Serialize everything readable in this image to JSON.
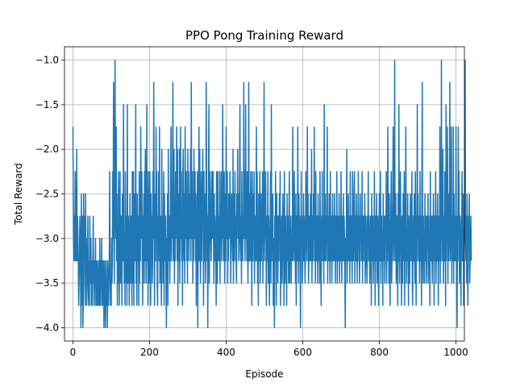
{
  "chart_data": {
    "type": "line",
    "title": "PPO Pong Training Reward",
    "xlabel": "Episode",
    "ylabel": "Total Reward",
    "xlim": [
      -22,
      1022
    ],
    "ylim": [
      -4.15,
      -0.85
    ],
    "x_ticks": [
      0,
      200,
      400,
      600,
      800,
      1000
    ],
    "x_tick_labels": [
      "0",
      "200",
      "400",
      "600",
      "800",
      "1000"
    ],
    "y_ticks": [
      -4.0,
      -3.5,
      -3.0,
      -2.5,
      -2.0,
      -1.5,
      -1.0
    ],
    "y_tick_labels": [
      "−4.0",
      "−3.5",
      "−3.0",
      "−2.5",
      "−2.0",
      "−1.5",
      "−1.0"
    ],
    "grid": true,
    "series_color": "#1f77b4",
    "x_step": 1,
    "series": [
      {
        "values": [
          -1.75,
          -2.5,
          -3.0,
          -3.25,
          -2.75,
          -3.25,
          -2.25,
          -3.0,
          -3.25,
          -2.75,
          -2.0,
          -3.25,
          -2.75,
          -3.0,
          -3.25,
          -3.75,
          -3.5,
          -3.25,
          -2.75,
          -3.0,
          -3.5,
          -4.0,
          -2.5,
          -3.75,
          -3.0,
          -2.75,
          -4.0,
          -3.75,
          -2.5,
          -3.25,
          -2.75,
          -3.5,
          -3.75,
          -2.5,
          -3.25,
          -3.0,
          -3.75,
          -3.5,
          -3.25,
          -2.75,
          -3.5,
          -3.75,
          -3.25,
          -3.75,
          -2.75,
          -3.25,
          -3.5,
          -3.0,
          -3.75,
          -3.25,
          -3.5,
          -3.75,
          -3.25,
          -2.75,
          -3.5,
          -3.25,
          -3.75,
          -3.25,
          -3.5,
          -3.0,
          -3.75,
          -3.25,
          -3.5,
          -3.75,
          -3.25,
          -3.5,
          -3.75,
          -3.5,
          -3.25,
          -3.75,
          -3.0,
          -3.5,
          -3.75,
          -3.25,
          -3.5,
          -3.0,
          -3.75,
          -3.25,
          -3.5,
          -3.75,
          -3.25,
          -4.0,
          -3.5,
          -3.25,
          -3.75,
          -4.0,
          -3.5,
          -3.25,
          -3.75,
          -3.5,
          -4.0,
          -3.25,
          -3.5,
          -3.75,
          -3.5,
          -3.25,
          -2.25,
          -3.25,
          -3.75,
          -3.5,
          -3.75,
          -3.0,
          -3.5,
          -3.25,
          -2.25,
          -3.0,
          -1.25,
          -2.75,
          -3.5,
          -2.25,
          -1.0,
          -2.5,
          -3.0,
          -1.75,
          -3.25,
          -2.5,
          -3.75,
          -3.0,
          -3.5,
          -2.25,
          -3.25,
          -3.75,
          -2.75,
          -2.25,
          -3.5,
          -3.0,
          -2.75,
          -3.25,
          -3.75,
          -2.5,
          -3.0,
          -3.25,
          -1.5,
          -2.75,
          -3.5,
          -3.0,
          -3.75,
          -2.25,
          -3.25,
          -3.5,
          -2.75,
          -3.75,
          -1.5,
          -3.25,
          -3.5,
          -2.75,
          -3.0,
          -3.75,
          -3.25,
          -2.5,
          -3.5,
          -3.0,
          -2.75,
          -3.25,
          -3.75,
          -2.25,
          -3.0,
          -3.5,
          -2.25,
          -3.75,
          -3.0,
          -2.5,
          -3.25,
          -2.75,
          -1.5,
          -3.5,
          -3.0,
          -3.75,
          -2.5,
          -3.25,
          -2.75,
          -3.0,
          -3.75,
          -2.25,
          -3.5,
          -2.75,
          -3.25,
          -1.75,
          -2.5,
          -3.0,
          -2.25,
          -3.25,
          -3.75,
          -2.75,
          -3.0,
          -2.5,
          -3.5,
          -2.25,
          -3.25,
          -2.0,
          -2.75,
          -3.5,
          -3.0,
          -1.5,
          -3.25,
          -2.75,
          -3.75,
          -2.25,
          -3.0,
          -3.5,
          -2.75,
          -2.25,
          -3.25,
          -3.75,
          -2.5,
          -3.0,
          -2.75,
          -3.5,
          -3.25,
          -2.25,
          -3.0,
          -1.25,
          -2.75,
          -3.75,
          -3.0,
          -2.5,
          -3.25,
          -1.75,
          -3.0,
          -2.25,
          -3.5,
          -3.75,
          -2.75,
          -3.0,
          -2.25,
          -3.25,
          -1.75,
          -3.5,
          -3.0,
          -2.75,
          -3.25,
          -3.75,
          -2.0,
          -3.25,
          -2.75,
          -3.5,
          -3.0,
          -2.25,
          -3.75,
          -2.5,
          -3.25,
          -3.0,
          -2.75,
          -3.5,
          -4.0,
          -3.0,
          -3.25,
          -2.5,
          -3.75,
          -2.0,
          -3.0,
          -3.25,
          -2.75,
          -3.5,
          -3.0,
          -2.25,
          -1.75,
          -3.25,
          -2.75,
          -3.0,
          -2.25,
          -1.25,
          -3.25,
          -2.5,
          -2.0,
          -3.5,
          -2.75,
          -3.25,
          -2.25,
          -3.0,
          -2.5,
          -1.75,
          -3.25,
          -2.0,
          -3.75,
          -3.0,
          -2.5,
          -3.25,
          -2.0,
          -3.5,
          -2.75,
          -1.75,
          -3.0,
          -2.25,
          -3.25,
          -2.75,
          -3.75,
          -2.25,
          -2.0,
          -3.0,
          -3.25,
          -2.5,
          -3.5,
          -1.75,
          -2.75,
          -3.0,
          -2.25,
          -3.25,
          -2.75,
          -3.5,
          -2.0,
          -3.0,
          -2.25,
          -3.25,
          -2.5,
          -2.75,
          -3.0,
          -2.0,
          -3.25,
          -1.25,
          -2.75,
          -3.0,
          -2.25,
          -3.5,
          -2.5,
          -3.25,
          -2.0,
          -2.75,
          -3.0,
          -2.25,
          -3.25,
          -2.5,
          -3.75,
          -2.75,
          -3.0,
          -2.25,
          -4.0,
          -3.0,
          -2.5,
          -1.75,
          -3.25,
          -2.0,
          -2.75,
          -3.5,
          -3.0,
          -2.25,
          -3.25,
          -2.5,
          -2.75,
          -2.0,
          -3.0,
          -3.75,
          -2.25,
          -3.25,
          -2.5,
          -2.75,
          -3.5,
          -3.0,
          -1.25,
          -2.5,
          -3.25,
          -2.75,
          -4.0,
          -3.0,
          -2.25,
          -1.5,
          -3.5,
          -3.0,
          -2.25,
          -2.75,
          -3.0,
          -3.25,
          -2.5,
          -2.25,
          -3.0,
          -2.75,
          -2.25,
          -3.0,
          -3.5,
          -2.5,
          -3.25,
          -2.75,
          -3.0,
          -3.25,
          -3.75,
          -2.25,
          -3.0,
          -3.5,
          -2.25,
          -3.25,
          -2.75,
          -3.0,
          -3.25,
          -2.25,
          -3.5,
          -2.75,
          -3.0,
          -2.25,
          -3.25,
          -2.75,
          -3.0,
          -1.5,
          -2.5,
          -3.25,
          -3.0,
          -2.25,
          -3.5,
          -2.75,
          -2.5,
          -3.25,
          -1.75,
          -3.0,
          -2.75,
          -2.25,
          -3.5,
          -3.0,
          -3.25,
          -2.5,
          -2.75,
          -3.0,
          -2.25,
          -2.75,
          -3.5,
          -3.0,
          -2.5,
          -2.75,
          -3.0,
          -3.25,
          -2.0,
          -3.5,
          -2.5,
          -3.0,
          -3.25,
          -2.25,
          -3.0,
          -2.75,
          -3.25,
          -3.5,
          -2.5,
          -2.75,
          -2.0,
          -3.0,
          -2.5,
          -3.25,
          -3.0,
          -2.25,
          -1.5,
          -3.0,
          -3.25,
          -2.75,
          -3.5,
          -2.25,
          -3.0,
          -3.25,
          -2.75,
          -3.0,
          -1.25,
          -3.0,
          -2.25,
          -3.25,
          -2.75,
          -1.5,
          -3.0,
          -2.5,
          -3.25,
          -2.25,
          -3.0,
          -3.5,
          -2.75,
          -1.25,
          -3.25,
          -2.5,
          -3.0,
          -3.25,
          -2.25,
          -2.75,
          -3.0,
          -3.75,
          -2.25,
          -3.0,
          -3.25,
          -2.5,
          -3.0,
          -2.25,
          -3.5,
          -3.0,
          -2.75,
          -3.25,
          -3.0,
          -1.75,
          -3.25,
          -2.25,
          -3.5,
          -3.0,
          -3.75,
          -2.5,
          -3.0,
          -3.25,
          -2.25,
          -3.5,
          -3.0,
          -2.5,
          -3.25,
          -2.75,
          -3.0,
          -2.25,
          -3.5,
          -2.75,
          -3.0,
          -1.25,
          -3.25,
          -2.5,
          -3.0,
          -2.25,
          -3.0,
          -3.75,
          -2.75,
          -3.25,
          -3.0,
          -2.25,
          -3.5,
          -2.75,
          -3.25,
          -3.75,
          -3.0,
          -2.75,
          -2.25,
          -3.5,
          -1.5,
          -3.25,
          -2.75,
          -3.0,
          -2.5,
          -3.75,
          -3.0,
          -3.25,
          -4.0,
          -2.75,
          -3.25,
          -2.25,
          -3.0,
          -3.75,
          -2.5,
          -3.25,
          -2.75,
          -3.5,
          -3.0,
          -2.75,
          -3.25,
          -2.5,
          -3.0,
          -2.25,
          -3.75,
          -3.25,
          -3.0,
          -2.75,
          -3.5,
          -3.25,
          -2.5,
          -2.75,
          -3.0,
          -3.75,
          -2.25,
          -3.0,
          -3.5,
          -2.75,
          -3.25,
          -3.0,
          -3.75,
          -2.5,
          -3.25,
          -2.75,
          -3.0,
          -3.5,
          -2.75,
          -2.25,
          -3.5,
          -3.0,
          -3.25,
          -2.75,
          -3.5,
          -3.0,
          -3.25,
          -2.75,
          -1.75,
          -3.25,
          -3.0,
          -2.75,
          -2.25,
          -3.25,
          -3.0,
          -3.5,
          -2.5,
          -3.75,
          -3.0,
          -2.75,
          -3.25,
          -1.75,
          -3.0,
          -3.5,
          -2.5,
          -3.25,
          -2.75,
          -3.0,
          -4.0,
          -3.25,
          -2.25,
          -3.0,
          -2.75,
          -3.5,
          -3.25,
          -3.0,
          -2.5,
          -3.25,
          -2.75,
          -3.0,
          -3.5,
          -3.25,
          -2.25,
          -2.75,
          -3.0,
          -3.25,
          -1.75,
          -3.0,
          -2.5,
          -3.5,
          -3.25,
          -2.75,
          -3.0,
          -3.25,
          -2.5,
          -3.0,
          -3.25,
          -2.0,
          -3.5,
          -3.0,
          -2.75,
          -3.25,
          -2.5,
          -3.0,
          -1.75,
          -3.25,
          -2.75,
          -3.5,
          -2.25,
          -3.0,
          -3.25,
          -2.75,
          -3.0,
          -3.5,
          -2.5,
          -3.0,
          -3.25,
          -2.75,
          -3.5,
          -2.25,
          -3.0,
          -3.25,
          -3.75,
          -2.75,
          -3.0,
          -2.25,
          -3.25,
          -3.0,
          -2.75,
          -3.5,
          -1.5,
          -3.0,
          -3.25,
          -2.5,
          -3.0,
          -3.25,
          -2.75,
          -3.0,
          -1.75,
          -3.5,
          -2.75,
          -3.0,
          -3.25,
          -2.5,
          -3.0,
          -3.5,
          -2.25,
          -3.0,
          -3.25,
          -2.75,
          -3.5,
          -3.0,
          -2.5,
          -3.25,
          -3.0,
          -2.75,
          -3.25,
          -2.5,
          -3.0,
          -3.5,
          -2.75,
          -3.0,
          -3.25,
          -2.25,
          -3.5,
          -3.0,
          -2.75,
          -3.25,
          -3.0,
          -2.5,
          -3.5,
          -3.0,
          -2.75,
          -3.25,
          -2.25,
          -3.0,
          -3.5,
          -2.75,
          -3.25,
          -3.0,
          -2.5,
          -3.25,
          -2.75,
          -3.0,
          -3.5,
          -4.0,
          -3.0,
          -3.25,
          -2.75,
          -2.0,
          -3.5,
          -3.0,
          -3.25,
          -2.5,
          -3.0,
          -3.25,
          -2.75,
          -3.5,
          -2.25,
          -3.0,
          -3.25,
          -2.75,
          -3.0,
          -3.5,
          -2.25,
          -2.5,
          -3.25,
          -3.0,
          -2.75,
          -2.25,
          -3.5,
          -3.0,
          -2.75,
          -3.25,
          -2.5,
          -3.0,
          -3.5,
          -2.75,
          -3.25,
          -2.25,
          -3.0,
          -2.75,
          -3.5,
          -3.25,
          -2.5,
          -3.0,
          -2.75,
          -3.25,
          -3.0,
          -2.25,
          -3.5,
          -2.75,
          -3.0,
          -3.25,
          -2.75,
          -3.0,
          -2.5,
          -3.5,
          -3.25,
          -2.75,
          -3.0,
          -3.25,
          -3.5,
          -2.75,
          -3.0,
          -2.25,
          -3.25,
          -2.75,
          -3.0,
          -3.5,
          -3.25,
          -2.75,
          -3.0,
          -3.75,
          -2.5,
          -3.0,
          -3.25,
          -2.75,
          -3.5,
          -3.0,
          -3.25,
          -2.25,
          -3.0,
          -3.75,
          -2.75,
          -3.25,
          -3.0,
          -2.5,
          -3.5,
          -3.0,
          -2.75,
          -3.25,
          -3.75,
          -3.0,
          -2.5,
          -3.25,
          -3.0,
          -2.25,
          -3.5,
          -3.0,
          -2.75,
          -3.25,
          -3.0,
          -3.75,
          -2.5,
          -3.0,
          -3.25,
          -2.75,
          -3.5,
          -3.25,
          -2.75,
          -3.0,
          -2.25,
          -3.5,
          -3.0,
          -3.25,
          -1.75,
          -2.75,
          -3.0,
          -3.5,
          -2.5,
          -3.25,
          -3.75,
          -3.0,
          -2.75,
          -2.25,
          -3.5,
          -3.25,
          -3.0,
          -2.5,
          -1.75,
          -3.25,
          -3.0,
          -2.75,
          -1.0,
          -3.25,
          -3.0,
          -2.5,
          -3.5,
          -3.25,
          -2.75,
          -3.0,
          -3.75,
          -2.5,
          -3.25,
          -1.5,
          -3.0,
          -3.5,
          -2.75,
          -2.25,
          -3.0,
          -3.25,
          -3.75,
          -2.75,
          -3.0,
          -3.5,
          -2.5,
          -3.25,
          -3.0,
          -2.25,
          -3.75,
          -3.0,
          -3.25,
          -1.75,
          -2.75,
          -3.5,
          -3.0,
          -3.25,
          -2.5,
          -3.0,
          -3.75,
          -2.75,
          -3.25,
          -3.5,
          -3.0,
          -2.5,
          -2.75,
          -3.25,
          -3.0,
          -2.25,
          -3.5,
          -3.75,
          -3.0,
          -2.75,
          -3.25,
          -2.5,
          -3.0,
          -3.5,
          -2.25,
          -3.0,
          -3.75,
          -2.75,
          -3.25,
          -1.5,
          -3.0,
          -2.5,
          -3.25,
          -2.75,
          -3.0,
          -3.5,
          -2.25,
          -3.25,
          -2.75,
          -3.0,
          -3.75,
          -2.5,
          -1.25,
          -3.0,
          -3.5,
          -2.75,
          -3.25,
          -3.0,
          -3.5,
          -2.5,
          -3.25,
          -3.0,
          -2.75,
          -3.5,
          -3.25,
          -2.75,
          -3.0,
          -2.5,
          -3.5,
          -2.75,
          -3.25,
          -3.0,
          -3.75,
          -2.25,
          -3.0,
          -3.25,
          -2.75,
          -3.0,
          -3.5,
          -2.75,
          -3.25,
          -2.5,
          -3.0,
          -3.75,
          -2.75,
          -3.25,
          -3.0,
          -2.25,
          -3.5,
          -3.0,
          -2.75,
          -3.25,
          -2.5,
          -3.0,
          -3.75,
          -2.75,
          -3.25,
          -3.0,
          -1.75,
          -3.5,
          -2.25,
          -3.25,
          -1.0,
          -3.0,
          -2.75,
          -3.25,
          -2.0,
          -3.5,
          -3.0,
          -2.75,
          -3.25,
          -2.25,
          -3.0,
          -3.75,
          -1.5,
          -3.25,
          -2.75,
          -3.0,
          -1.75,
          -3.5,
          -2.5,
          -3.25,
          -3.0,
          -2.75,
          -1.25,
          -3.25,
          -3.0,
          -2.5,
          -1.75,
          -3.5,
          -2.75,
          -3.25,
          -3.0,
          -1.75,
          -3.5,
          -2.5,
          -3.25,
          -3.0,
          -2.75,
          -3.25,
          -1.75,
          -3.0,
          -3.5,
          -4.0,
          -2.75,
          -3.25,
          -1.75,
          -3.0,
          -2.25,
          -3.5,
          -3.0,
          -2.75,
          -3.25,
          -3.75,
          -3.0,
          -2.75,
          -2.25,
          -3.25,
          -3.0,
          -2.5,
          -3.75,
          -3.25,
          -3.0,
          -2.75,
          -1.0,
          -3.0,
          -3.25,
          -2.75,
          -3.5,
          -2.5,
          -3.0,
          -3.75,
          -3.25,
          -2.75,
          -3.0,
          -2.5,
          -3.5,
          -3.25,
          -3.0,
          -2.75,
          -3.25
        ]
      }
    ]
  }
}
